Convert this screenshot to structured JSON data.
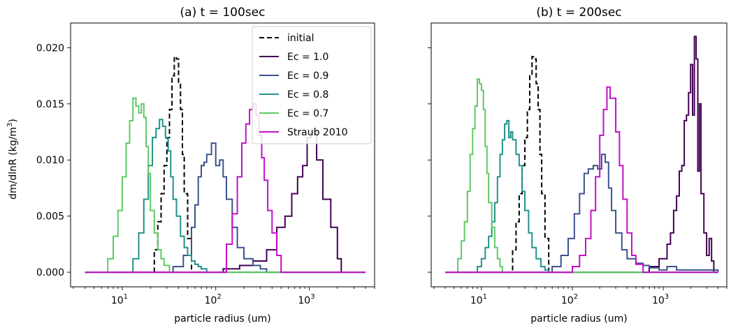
{
  "figure": {
    "ylabel_text": "dm/dlnR (kg/m",
    "ylabel_unit": "3",
    "ylabel_close": ")"
  },
  "chart_data": [
    {
      "type": "line",
      "title": "(a) t = 100sec",
      "xlabel": "particle radius (um)",
      "ylabel": "dm/dlnR (kg/m3)",
      "xscale": "log",
      "xlim": [
        2.8,
        5000
      ],
      "ylim": [
        -0.0013,
        0.0222
      ],
      "xticks": [
        {
          "value": 10,
          "label": "10",
          "exp": "1"
        },
        {
          "value": 100,
          "label": "10",
          "exp": "2"
        },
        {
          "value": 1000,
          "label": "10",
          "exp": "3"
        }
      ],
      "yticks": [
        {
          "value": 0,
          "label": "0.000"
        },
        {
          "value": 0.005,
          "label": "0.005"
        },
        {
          "value": 0.01,
          "label": "0.010"
        },
        {
          "value": 0.015,
          "label": "0.015"
        },
        {
          "value": 0.02,
          "label": "0.020"
        }
      ],
      "legend": {
        "placement": "top-right"
      },
      "series": [
        {
          "name": "initial",
          "color": "#000000",
          "dash": true,
          "x": [
            4,
            20,
            22,
            24,
            26,
            28,
            30,
            32,
            34,
            36,
            38,
            40,
            42,
            44,
            46,
            50,
            55,
            4000
          ],
          "y": [
            0,
            0,
            0.002,
            0.0045,
            0.007,
            0.0095,
            0.012,
            0.0145,
            0.0175,
            0.0192,
            0.019,
            0.0168,
            0.0145,
            0.0105,
            0.007,
            0.003,
            0,
            0
          ]
        },
        {
          "name": "Ec = 1.0",
          "color": "#440154",
          "dash": false,
          "x": [
            4,
            80,
            120,
            180,
            250,
            350,
            450,
            550,
            650,
            750,
            850,
            950,
            1050,
            1200,
            1400,
            1700,
            2000,
            2200,
            4000
          ],
          "y": [
            0,
            0,
            0.0003,
            0.0006,
            0.001,
            0.002,
            0.004,
            0.005,
            0.007,
            0.0085,
            0.0095,
            0.012,
            0.0125,
            0.01,
            0.0065,
            0.004,
            0.0012,
            0,
            0
          ]
        },
        {
          "name": "Ec = 0.9",
          "color": "#3b528b",
          "dash": false,
          "x": [
            4,
            25,
            35,
            45,
            55,
            60,
            65,
            70,
            75,
            80,
            90,
            100,
            110,
            120,
            130,
            150,
            170,
            200,
            250,
            300,
            350,
            4000
          ],
          "y": [
            0,
            0,
            0.0005,
            0.0015,
            0.004,
            0.006,
            0.0085,
            0.0095,
            0.0098,
            0.0105,
            0.0115,
            0.0095,
            0.01,
            0.0085,
            0.0065,
            0.004,
            0.0022,
            0.0012,
            0.0006,
            0.0003,
            0,
            0
          ]
        },
        {
          "name": "Ec = 0.8",
          "color": "#21918c",
          "dash": false,
          "x": [
            4,
            11,
            13,
            15,
            17,
            19,
            21,
            23,
            25,
            27,
            29,
            31,
            33,
            35,
            38,
            42,
            46,
            50,
            55,
            60,
            65,
            70,
            80,
            4000
          ],
          "y": [
            0,
            0,
            0.0012,
            0.0035,
            0.0065,
            0.0095,
            0.012,
            0.0128,
            0.0136,
            0.013,
            0.012,
            0.0108,
            0.0085,
            0.0065,
            0.005,
            0.0032,
            0.0022,
            0.0015,
            0.001,
            0.0007,
            0.0005,
            0.0003,
            0,
            0
          ]
        },
        {
          "name": "Ec = 0.7",
          "color": "#5ec962",
          "dash": false,
          "x": [
            4,
            6,
            7,
            8,
            9,
            10,
            11,
            12,
            13,
            14,
            15,
            16,
            17,
            18,
            19,
            20,
            22,
            24,
            26,
            28,
            32,
            4000
          ],
          "y": [
            0,
            0,
            0.0012,
            0.0032,
            0.0055,
            0.0085,
            0.0115,
            0.0135,
            0.0155,
            0.0148,
            0.0142,
            0.015,
            0.0138,
            0.0112,
            0.0088,
            0.0055,
            0.0035,
            0.002,
            0.0012,
            0.0006,
            0,
            0
          ]
        },
        {
          "name": "Straub 2010",
          "color": "#c20fc8",
          "dash": false,
          "x": [
            4,
            100,
            130,
            150,
            170,
            190,
            210,
            230,
            250,
            270,
            290,
            310,
            330,
            360,
            400,
            450,
            500,
            4000
          ],
          "y": [
            0,
            0,
            0.0025,
            0.0052,
            0.0085,
            0.0115,
            0.0132,
            0.0145,
            0.015,
            0.014,
            0.0122,
            0.0102,
            0.0082,
            0.0055,
            0.0035,
            0.0015,
            0,
            0
          ]
        }
      ]
    },
    {
      "type": "line",
      "title": "(b) t = 200sec",
      "xlabel": "particle radius (um)",
      "ylabel": "",
      "xscale": "log",
      "xlim": [
        2.8,
        5000
      ],
      "ylim": [
        -0.0013,
        0.0222
      ],
      "xticks": [
        {
          "value": 10,
          "label": "10",
          "exp": "1"
        },
        {
          "value": 100,
          "label": "10",
          "exp": "2"
        },
        {
          "value": 1000,
          "label": "10",
          "exp": "3"
        }
      ],
      "yticks": [
        {
          "value": 0,
          "label": ""
        },
        {
          "value": 0.005,
          "label": ""
        },
        {
          "value": 0.01,
          "label": ""
        },
        {
          "value": 0.015,
          "label": ""
        },
        {
          "value": 0.02,
          "label": ""
        }
      ],
      "legend": {
        "placement": "none"
      },
      "series": [
        {
          "name": "initial",
          "color": "#000000",
          "dash": true,
          "x": [
            4,
            20,
            22,
            24,
            26,
            28,
            30,
            32,
            34,
            36,
            38,
            40,
            42,
            44,
            46,
            50,
            55,
            4000
          ],
          "y": [
            0,
            0,
            0.002,
            0.0045,
            0.007,
            0.0095,
            0.012,
            0.0145,
            0.0175,
            0.0192,
            0.019,
            0.0168,
            0.0145,
            0.0105,
            0.007,
            0.003,
            0,
            0
          ]
        },
        {
          "name": "Ec = 1.0",
          "color": "#440154",
          "dash": false,
          "x": [
            4,
            500,
            700,
            900,
            1100,
            1200,
            1300,
            1400,
            1500,
            1600,
            1700,
            1800,
            1900,
            2000,
            2100,
            2200,
            2300,
            2400,
            2500,
            2600,
            2800,
            3000,
            3200,
            3400,
            3600,
            4000
          ],
          "y": [
            0,
            0,
            0.0005,
            0.0012,
            0.0025,
            0.0035,
            0.0055,
            0.0068,
            0.009,
            0.0095,
            0.0135,
            0.014,
            0.016,
            0.0185,
            0.014,
            0.021,
            0.019,
            0.009,
            0.015,
            0.007,
            0.0035,
            0.0015,
            0.003,
            0.001,
            0,
            0
          ]
        },
        {
          "name": "Ec = 0.9",
          "color": "#3b528b",
          "dash": false,
          "x": [
            4,
            45,
            60,
            75,
            90,
            105,
            120,
            135,
            150,
            170,
            190,
            210,
            230,
            250,
            270,
            300,
            350,
            400,
            500,
            600,
            700,
            900,
            1100,
            1400,
            4000
          ],
          "y": [
            0,
            0,
            0.0005,
            0.0015,
            0.003,
            0.0052,
            0.007,
            0.0088,
            0.0092,
            0.0095,
            0.0092,
            0.0105,
            0.0098,
            0.0075,
            0.0055,
            0.0035,
            0.002,
            0.0012,
            0.0008,
            0.0006,
            0.0004,
            0.0002,
            0.0005,
            0.0002,
            0
          ]
        },
        {
          "name": "Ec = 0.8",
          "color": "#21918c",
          "dash": false,
          "x": [
            4,
            8,
            9,
            10,
            11,
            12,
            13,
            14,
            15,
            16,
            17,
            18,
            19,
            20,
            21,
            22,
            24,
            26,
            28,
            30,
            33,
            36,
            40,
            45,
            50,
            55,
            4000
          ],
          "y": [
            0,
            0,
            0.0005,
            0.0012,
            0.0022,
            0.0032,
            0.0045,
            0.0062,
            0.0085,
            0.0105,
            0.0118,
            0.0132,
            0.0135,
            0.012,
            0.0125,
            0.0118,
            0.0105,
            0.0095,
            0.0072,
            0.0055,
            0.0035,
            0.0022,
            0.0012,
            0.0005,
            0.0002,
            0,
            0
          ]
        },
        {
          "name": "Ec = 0.7",
          "color": "#5ec962",
          "dash": false,
          "x": [
            4,
            5,
            5.5,
            6,
            6.5,
            7,
            7.5,
            8,
            8.5,
            9,
            9.5,
            10,
            10.5,
            11,
            11.5,
            12,
            13,
            14,
            15,
            16,
            17,
            4000
          ],
          "y": [
            0,
            0,
            0.0012,
            0.0028,
            0.0045,
            0.0072,
            0.0105,
            0.0128,
            0.0148,
            0.0172,
            0.0168,
            0.0162,
            0.0145,
            0.0112,
            0.0088,
            0.0062,
            0.004,
            0.0022,
            0.0012,
            0.0005,
            0,
            0
          ]
        },
        {
          "name": "Straub 2010",
          "color": "#c20fc8",
          "dash": false,
          "x": [
            4,
            80,
            100,
            120,
            140,
            160,
            180,
            200,
            220,
            240,
            260,
            280,
            300,
            330,
            360,
            400,
            450,
            500,
            600,
            4000
          ],
          "y": [
            0,
            0,
            0.0005,
            0.0015,
            0.003,
            0.0055,
            0.0085,
            0.0122,
            0.0145,
            0.0165,
            0.0155,
            0.0155,
            0.0125,
            0.0095,
            0.0065,
            0.0035,
            0.0015,
            0.0007,
            0,
            0
          ]
        }
      ]
    }
  ]
}
